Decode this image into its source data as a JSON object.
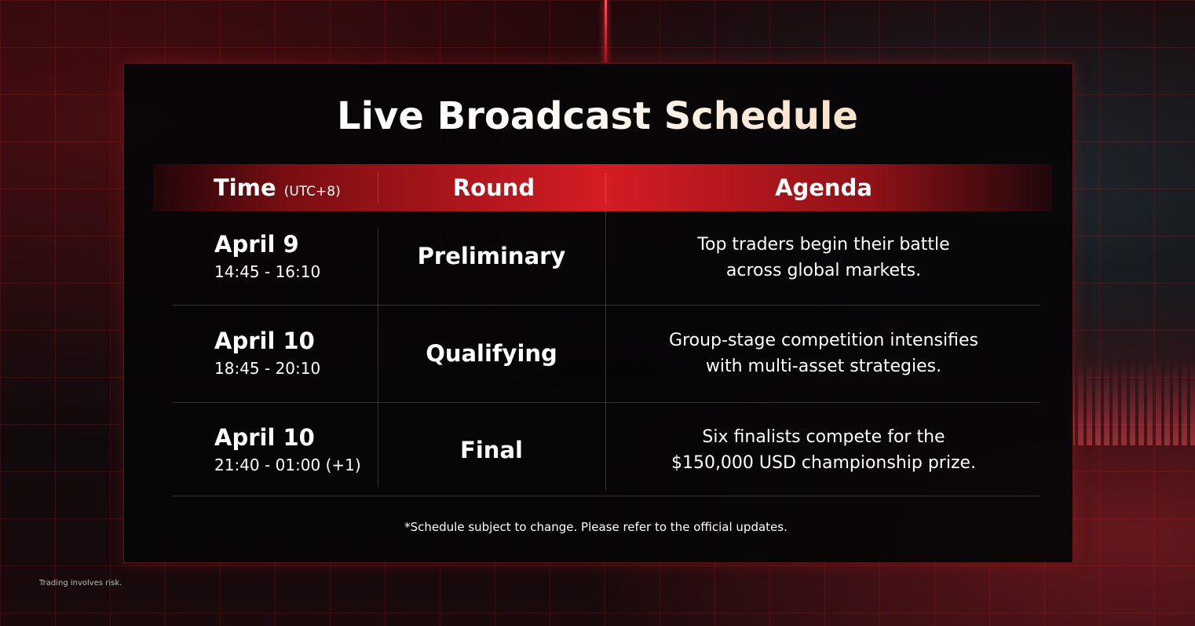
{
  "title": "Live Broadcast Schedule",
  "headers": {
    "time": "Time",
    "time_zone": "(UTC+8)",
    "round": "Round",
    "agenda": "Agenda"
  },
  "rows": [
    {
      "date": "April 9",
      "time": "14:45 - 16:10",
      "round": "Preliminary",
      "agenda_line1": "Top traders begin their battle",
      "agenda_line2": "across global markets."
    },
    {
      "date": "April 10",
      "time": "18:45 - 20:10",
      "round": "Qualifying",
      "agenda_line1": "Group-stage competition intensifies",
      "agenda_line2": "with multi-asset strategies."
    },
    {
      "date": "April 10",
      "time": "21:40 - 01:00 (+1)",
      "round": "Final",
      "agenda_line1": "Six finalists compete for the",
      "agenda_line2": "$150,000 USD championship prize."
    }
  ],
  "note": "*Schedule subject to change. Please refer to the official updates.",
  "disclaimer": "Trading involves risk.",
  "colors": {
    "accent": "#d51c24",
    "title_gradient_end": "#f6c79c"
  }
}
